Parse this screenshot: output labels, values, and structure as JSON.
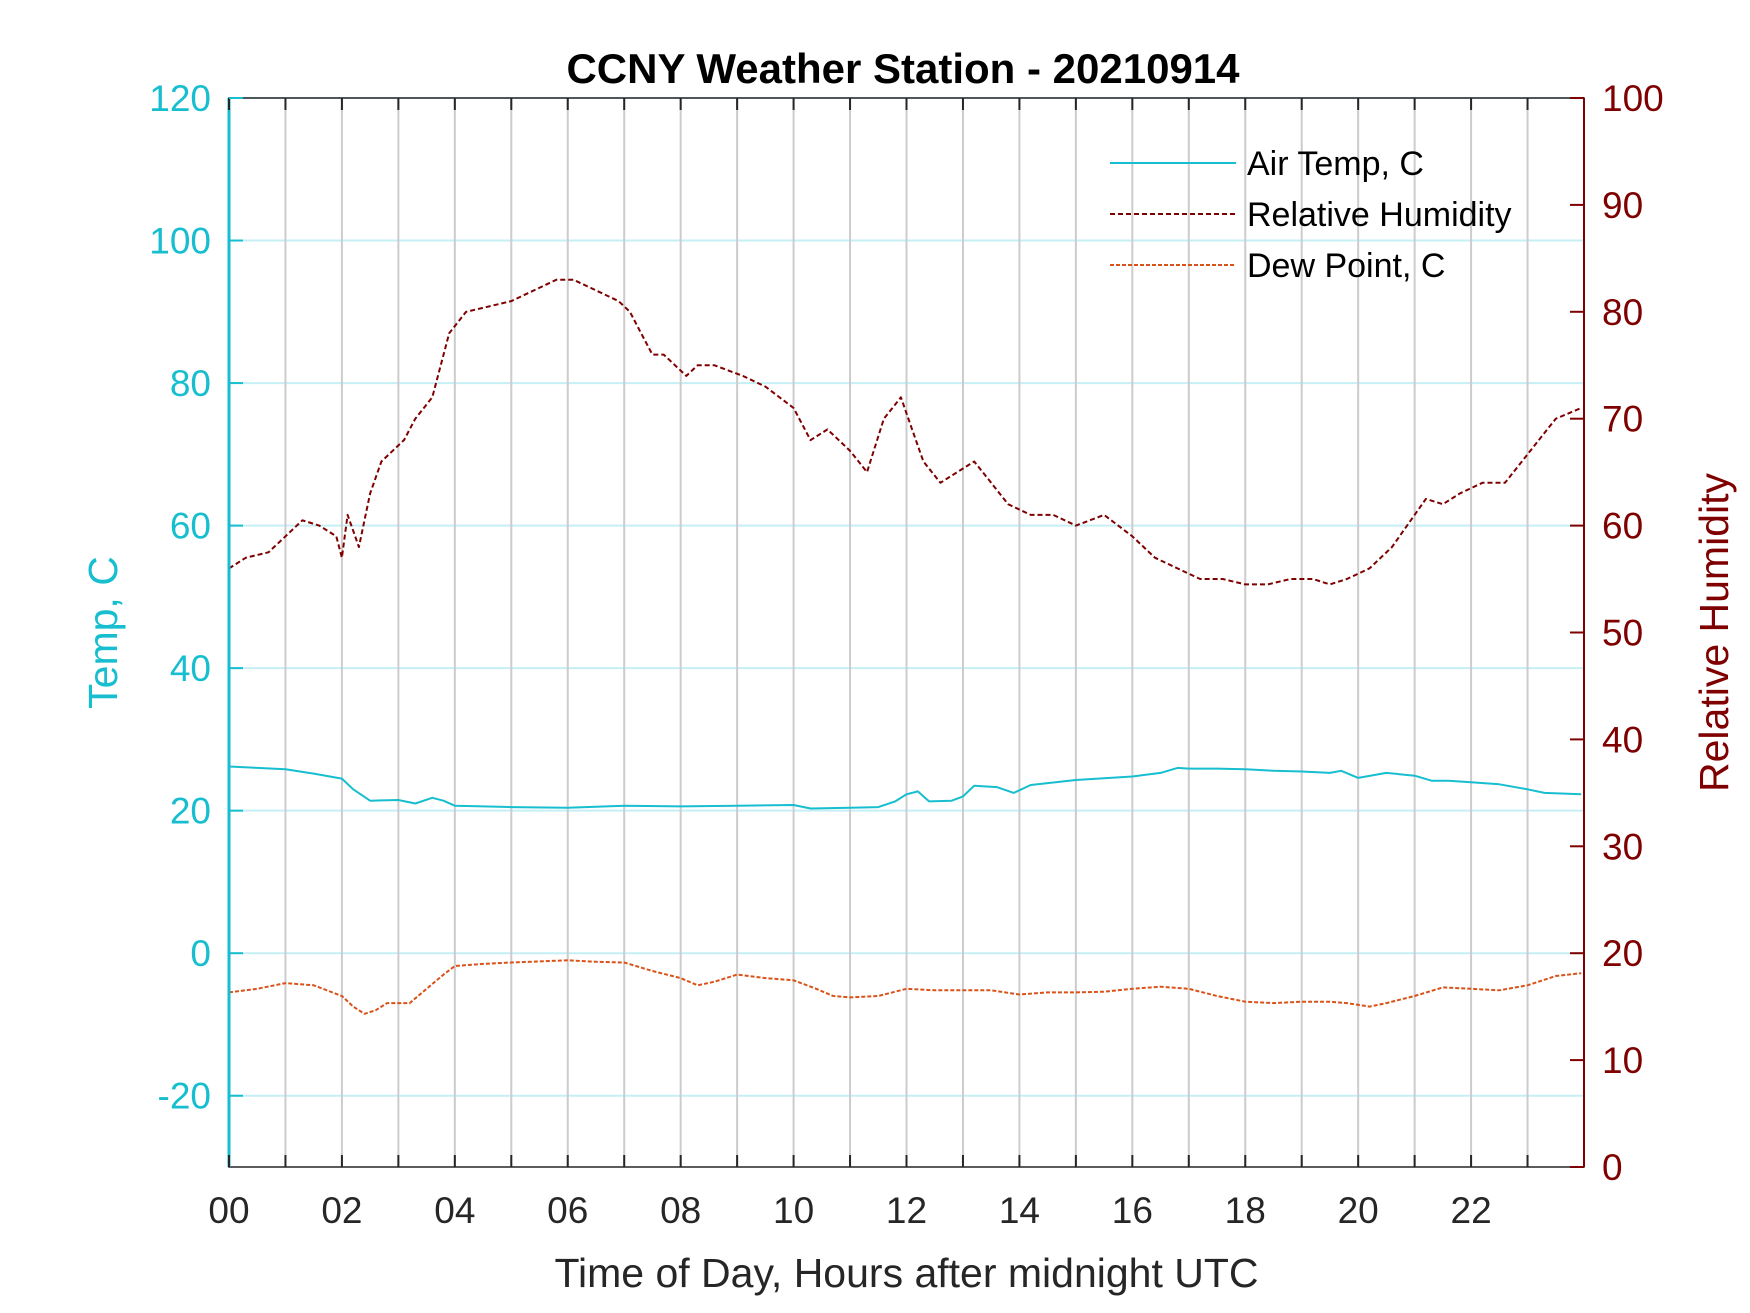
{
  "chart_data": {
    "type": "line",
    "title": "CCNY Weather Station - 20210914",
    "xlabel": "Time of Day, Hours after midnight UTC",
    "ylabel_left": "Temp, C",
    "ylabel_right": "Relative Humidity",
    "xlim": [
      0,
      24
    ],
    "ylim_left": [
      -30,
      120
    ],
    "ylim_right": [
      0,
      100
    ],
    "xticks": [
      "00",
      "02",
      "04",
      "06",
      "08",
      "10",
      "12",
      "14",
      "16",
      "18",
      "20",
      "22"
    ],
    "yticks_left": [
      "-20",
      "0",
      "20",
      "40",
      "60",
      "80",
      "100",
      "120"
    ],
    "yticks_right": [
      "0",
      "10",
      "20",
      "30",
      "40",
      "50",
      "60",
      "70",
      "80",
      "90",
      "100"
    ],
    "grid": true,
    "legend_position": "top-right",
    "colors": {
      "temp": "#17BECF",
      "rh": "#7F0000",
      "dew": "#D95319",
      "vgrid": "#CCCCCC",
      "hgrid": "#C5EFF5"
    },
    "series": [
      {
        "name": "Air Temp, C",
        "axis": "left",
        "style": "solid",
        "x": [
          0,
          0.5,
          1,
          1.5,
          2,
          2.2,
          2.5,
          3,
          3.3,
          3.6,
          3.8,
          4,
          4.5,
          5,
          6,
          7,
          8,
          9,
          10,
          10.3,
          11,
          11.5,
          11.8,
          12,
          12.2,
          12.4,
          12.8,
          13,
          13.2,
          13.6,
          13.9,
          14.2,
          15,
          16,
          16.5,
          16.8,
          17,
          17.5,
          18,
          18.5,
          19,
          19.5,
          19.7,
          20,
          20.5,
          21,
          21.3,
          21.6,
          22,
          22.5,
          23,
          23.3,
          23.95
        ],
        "y": [
          26.2,
          26,
          25.8,
          25.2,
          24.5,
          23,
          21.4,
          21.5,
          21,
          21.8,
          21.4,
          20.7,
          20.6,
          20.5,
          20.4,
          20.7,
          20.6,
          20.7,
          20.8,
          20.3,
          20.4,
          20.5,
          21.3,
          22.3,
          22.7,
          21.3,
          21.4,
          22,
          23.5,
          23.3,
          22.5,
          23.6,
          24.3,
          24.8,
          25.3,
          26,
          25.9,
          25.9,
          25.8,
          25.6,
          25.5,
          25.3,
          25.6,
          24.6,
          25.3,
          24.9,
          24.2,
          24.2,
          24,
          23.7,
          23,
          22.5,
          22.3
        ]
      },
      {
        "name": "Relative Humidity",
        "axis": "right",
        "style": "dashed",
        "x": [
          0,
          0.3,
          0.7,
          1,
          1.3,
          1.6,
          1.9,
          2,
          2.1,
          2.3,
          2.5,
          2.7,
          2.9,
          3.1,
          3.3,
          3.6,
          3.9,
          4.2,
          4.6,
          5,
          5.4,
          5.8,
          6.1,
          6.5,
          6.9,
          7.1,
          7.3,
          7.5,
          7.7,
          8.1,
          8.3,
          8.6,
          9.1,
          9.5,
          10,
          10.3,
          10.6,
          11,
          11.3,
          11.6,
          11.9,
          12.1,
          12.3,
          12.6,
          12.9,
          13.2,
          13.5,
          13.8,
          14.2,
          14.6,
          15,
          15.5,
          16,
          16.4,
          16.8,
          17.2,
          17.6,
          18,
          18.4,
          18.8,
          19.2,
          19.5,
          19.8,
          20.2,
          20.6,
          21,
          21.2,
          21.5,
          21.8,
          22.2,
          22.6,
          22.9,
          23.2,
          23.5,
          23.95
        ],
        "y": [
          56,
          57,
          57.5,
          59,
          60.5,
          60,
          59,
          57,
          61,
          58,
          63,
          66,
          67,
          68,
          70,
          72,
          78,
          80,
          80.5,
          81,
          82,
          83,
          83,
          82,
          81,
          80,
          78,
          76,
          76,
          74,
          75,
          75,
          74,
          73,
          71,
          68,
          69,
          67,
          65,
          70,
          72,
          69,
          66,
          64,
          65,
          66,
          64,
          62,
          61,
          61,
          60,
          61,
          59,
          57,
          56,
          55,
          55,
          54.5,
          54.5,
          55,
          55,
          54.5,
          55,
          56,
          58,
          61,
          62.5,
          62,
          63,
          64,
          64,
          66,
          68,
          70,
          71
        ]
      },
      {
        "name": "Dew Point, C",
        "axis": "left",
        "style": "dashed",
        "x": [
          0,
          0.5,
          1,
          1.5,
          2,
          2.2,
          2.4,
          2.6,
          2.8,
          3,
          3.2,
          3.5,
          3.8,
          4,
          4.5,
          5,
          6,
          6.5,
          7,
          7.5,
          8,
          8.3,
          8.6,
          9,
          9.5,
          10,
          10.4,
          10.7,
          11,
          11.5,
          12,
          12.5,
          13,
          13.5,
          14,
          14.5,
          15,
          15.5,
          16,
          16.5,
          17,
          17.5,
          18,
          18.5,
          19,
          19.5,
          19.8,
          20.2,
          20.5,
          21,
          21.5,
          22,
          22.5,
          23,
          23.5,
          23.95
        ],
        "y": [
          -5.5,
          -5,
          -4.2,
          -4.5,
          -6,
          -7.5,
          -8.5,
          -8,
          -7,
          -7,
          -7,
          -5,
          -3,
          -1.8,
          -1.5,
          -1.3,
          -1,
          -1.2,
          -1.3,
          -2.5,
          -3.5,
          -4.5,
          -4,
          -3,
          -3.5,
          -3.8,
          -5,
          -6,
          -6.2,
          -6,
          -5,
          -5.2,
          -5.2,
          -5.2,
          -5.8,
          -5.5,
          -5.5,
          -5.4,
          -5,
          -4.7,
          -5,
          -6,
          -6.8,
          -7,
          -6.8,
          -6.8,
          -7,
          -7.5,
          -7,
          -6,
          -4.8,
          -5,
          -5.2,
          -4.5,
          -3.2,
          -2.8
        ]
      }
    ]
  }
}
